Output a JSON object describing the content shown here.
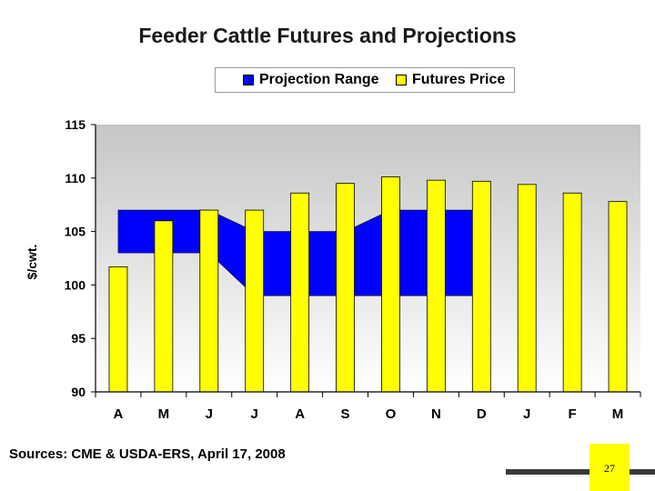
{
  "chart_data": {
    "type": "bar",
    "title": "Feeder Cattle Futures and Projections",
    "ylabel": "$/cwt.",
    "xlabel": "",
    "ylim": [
      90,
      115
    ],
    "yticks": [
      "90",
      "95",
      "100",
      "105",
      "110",
      "115"
    ],
    "categories": [
      "A",
      "M",
      "J",
      "J",
      "A",
      "S",
      "O",
      "N",
      "D",
      "J",
      "F",
      "M"
    ],
    "series": [
      {
        "name": "Futures Price",
        "type": "bar",
        "color": "#ffff00",
        "values": [
          101.7,
          106.0,
          107.0,
          107.0,
          108.6,
          109.5,
          110.1,
          109.8,
          109.7,
          109.4,
          108.6,
          107.8
        ]
      },
      {
        "name": "Projection Range",
        "type": "range-area",
        "color": "#0000ff",
        "high": [
          107,
          107,
          107,
          105,
          105,
          105,
          107,
          107,
          107
        ],
        "low": [
          103,
          103,
          103,
          99,
          99,
          99,
          99,
          99,
          99
        ]
      }
    ],
    "legend": [
      "Projection Range",
      "Futures Price"
    ],
    "legend_position": "top",
    "grid": false
  },
  "source_text": "Sources: CME & USDA-ERS, April 17, 2008",
  "page_number": "27"
}
